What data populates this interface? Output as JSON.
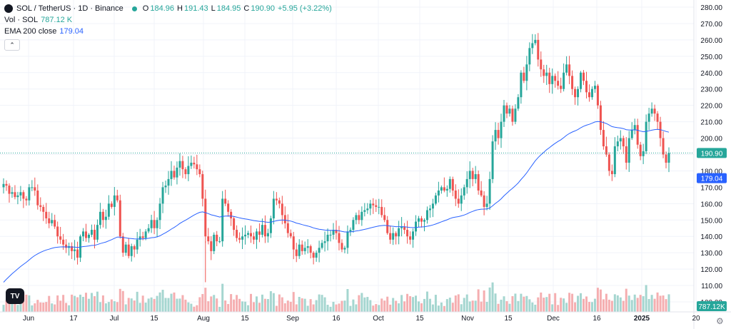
{
  "header": {
    "symbol": "SOL / TetherUS · 1D · Binance",
    "o_label": "O",
    "o_value": "184.96",
    "h_label": "H",
    "h_value": "191.43",
    "l_label": "L",
    "l_value": "184.95",
    "c_label": "C",
    "c_value": "190.90",
    "change": "+5.95 (+3.22%)",
    "vol_label": "Vol · SOL",
    "vol_value": "787.12 K",
    "ema_label": "EMA 200 close",
    "ema_value": "179.04",
    "collapse_icon": "chevron-up-icon"
  },
  "colors": {
    "up": "#26a69a",
    "down": "#ef5350",
    "ema": "#2962ff",
    "up_vol": "#a5d6d0",
    "down_vol": "#f5aeb0",
    "grid": "#f0f3fa",
    "axis_text": "#131722"
  },
  "footer": {
    "gear_icon": "gear-icon",
    "logo": "TV"
  },
  "chart_data": {
    "type": "candlestick",
    "y_axis_ticks": [
      "280.00",
      "270.00",
      "260.00",
      "250.00",
      "240.00",
      "230.00",
      "220.00",
      "210.00",
      "200.00",
      "190.00",
      "180.00",
      "170.00",
      "160.00",
      "150.00",
      "140.00",
      "130.00",
      "120.00",
      "110.00",
      "100.00"
    ],
    "ylim": [
      96,
      282
    ],
    "x_axis_ticks": [
      "Jun",
      "17",
      "Jul",
      "15",
      "Aug",
      "15",
      "Sep",
      "16",
      "Oct",
      "15",
      "Nov",
      "15",
      "Dec",
      "16",
      "2025",
      "20"
    ],
    "last_price_label": "190.90",
    "ema_label": "179.04",
    "volume_label": "787.12K",
    "series": [
      {
        "name": "SOL / TetherUS",
        "ohlc_close": [
          172,
          171,
          166,
          167,
          164,
          165,
          167,
          163,
          162,
          170,
          170,
          168,
          159,
          158,
          155,
          151,
          148,
          150,
          146,
          140,
          138,
          135,
          133,
          134,
          131,
          132,
          127,
          140,
          143,
          139,
          141,
          144,
          138,
          147,
          155,
          150,
          152,
          160,
          158,
          165,
          162,
          140,
          130,
          135,
          128,
          134,
          132,
          138,
          140,
          139,
          143,
          145,
          150,
          145,
          150,
          160,
          170,
          171,
          175,
          180,
          176,
          182,
          186,
          181,
          178,
          183,
          185,
          184,
          181,
          178,
          163,
          140,
          137,
          131,
          141,
          137,
          137,
          163,
          160,
          155,
          151,
          144,
          139,
          138,
          140,
          141,
          142,
          140,
          138,
          143,
          141,
          147,
          140,
          142,
          151,
          163,
          162,
          160,
          153,
          148,
          142,
          140,
          132,
          128,
          135,
          131,
          133,
          134,
          130,
          127,
          130,
          133,
          136,
          137,
          141,
          141,
          144,
          142,
          136,
          132,
          133,
          143,
          144,
          150,
          153,
          150,
          155,
          156,
          157,
          160,
          159,
          158,
          158,
          153,
          150,
          142,
          138,
          142,
          140,
          145,
          146,
          144,
          140,
          138,
          143,
          149,
          151,
          149,
          150,
          156,
          157,
          160,
          165,
          168,
          170,
          168,
          169,
          175,
          168,
          163,
          160,
          165,
          170,
          175,
          180,
          175,
          178,
          168,
          165,
          158,
          160,
          175,
          198,
          205,
          200,
          210,
          220,
          215,
          218,
          210,
          218,
          225,
          240,
          235,
          245,
          255,
          258,
          260,
          248,
          242,
          238,
          240,
          233,
          238,
          235,
          232,
          230,
          240,
          245,
          238,
          230,
          225,
          230,
          240,
          235,
          228,
          225,
          230,
          232,
          220,
          205,
          195,
          190,
          180,
          178,
          195,
          198,
          200,
          195,
          185,
          200,
          205,
          208,
          196,
          189,
          192,
          210,
          215,
          218,
          215,
          210,
          200,
          190,
          185,
          191
        ]
      },
      {
        "name": "EMA 200 close",
        "values_ref": "computed"
      }
    ],
    "volume_max_label": "110.00"
  }
}
